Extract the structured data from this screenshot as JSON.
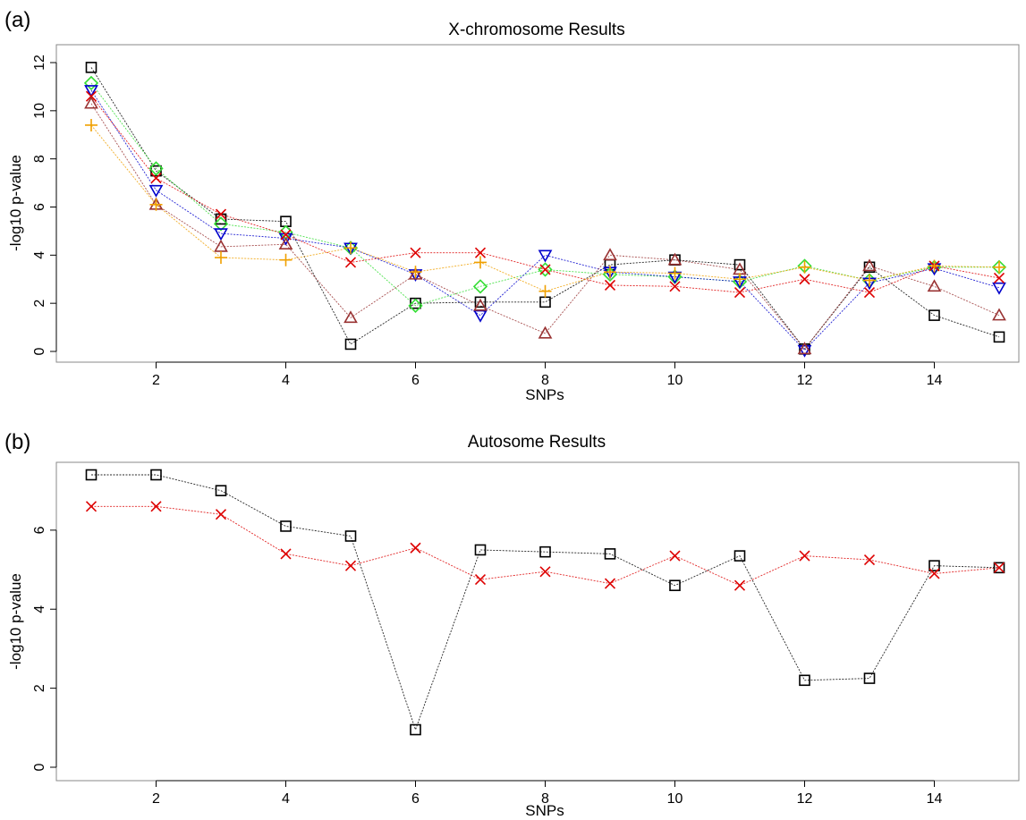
{
  "chart_data": [
    {
      "type": "line",
      "panel_label": "(a)",
      "title": "X-chromosome Results",
      "xlabel": "SNPs",
      "ylabel": "-log10 p-value",
      "xlim": [
        1,
        15
      ],
      "ylim": [
        0,
        12
      ],
      "xticks": [
        "2",
        "4",
        "6",
        "8",
        "10",
        "12",
        "14"
      ],
      "yticks": [
        "0",
        "2",
        "4",
        "6",
        "8",
        "10",
        "12"
      ],
      "x": [
        1,
        2,
        3,
        4,
        5,
        6,
        7,
        8,
        9,
        10,
        11,
        12,
        13,
        14,
        15
      ],
      "series": [
        {
          "marker": "square",
          "color": "#000000",
          "values": [
            11.8,
            7.5,
            5.5,
            5.4,
            0.3,
            2.0,
            2.05,
            2.05,
            3.6,
            3.8,
            3.6,
            0.1,
            3.5,
            1.5,
            0.6
          ]
        },
        {
          "marker": "diamond",
          "color": "#33dd33",
          "values": [
            11.15,
            7.6,
            5.3,
            4.95,
            4.3,
            1.9,
            2.7,
            3.4,
            3.2,
            3.1,
            2.9,
            3.55,
            2.95,
            3.5,
            3.5
          ]
        },
        {
          "marker": "triangle-down",
          "color": "#0000cc",
          "values": [
            10.85,
            6.7,
            4.9,
            4.7,
            4.3,
            3.2,
            1.5,
            4.0,
            3.3,
            3.1,
            2.9,
            0.05,
            2.85,
            3.45,
            2.65
          ]
        },
        {
          "marker": "x",
          "color": "#dd0000",
          "values": [
            10.6,
            7.2,
            5.7,
            4.85,
            3.7,
            4.1,
            4.1,
            3.4,
            2.75,
            2.7,
            2.45,
            3.0,
            2.45,
            3.55,
            3.05
          ]
        },
        {
          "marker": "triangle-up",
          "color": "#993333",
          "values": [
            10.3,
            6.1,
            4.35,
            4.45,
            1.4,
            3.2,
            1.9,
            0.75,
            4.0,
            3.8,
            3.4,
            0.1,
            3.55,
            2.7,
            1.5
          ]
        },
        {
          "marker": "plus",
          "color": "#f0a000",
          "values": [
            9.4,
            6.1,
            3.9,
            3.8,
            4.3,
            3.3,
            3.7,
            2.5,
            3.3,
            3.25,
            3.0,
            3.5,
            2.95,
            3.55,
            3.5
          ]
        }
      ]
    },
    {
      "type": "line",
      "panel_label": "(b)",
      "title": "Autosome Results",
      "xlabel": "SNPs",
      "ylabel": "-log10 p-value",
      "xlim": [
        1,
        15
      ],
      "ylim": [
        0,
        7.4
      ],
      "xticks": [
        "2",
        "4",
        "6",
        "8",
        "10",
        "12",
        "14"
      ],
      "yticks": [
        "0",
        "2",
        "4",
        "6"
      ],
      "x": [
        1,
        2,
        3,
        4,
        5,
        6,
        7,
        8,
        9,
        10,
        11,
        12,
        13,
        14,
        15
      ],
      "series": [
        {
          "marker": "square",
          "color": "#000000",
          "values": [
            7.4,
            7.4,
            7.0,
            6.1,
            5.85,
            0.95,
            5.5,
            5.45,
            5.4,
            4.6,
            5.35,
            2.2,
            2.25,
            5.1,
            5.05
          ]
        },
        {
          "marker": "x",
          "color": "#dd0000",
          "values": [
            6.6,
            6.6,
            6.4,
            5.4,
            5.1,
            5.55,
            4.75,
            4.95,
            4.65,
            5.35,
            4.6,
            5.35,
            5.25,
            4.9,
            5.05
          ]
        }
      ]
    }
  ]
}
